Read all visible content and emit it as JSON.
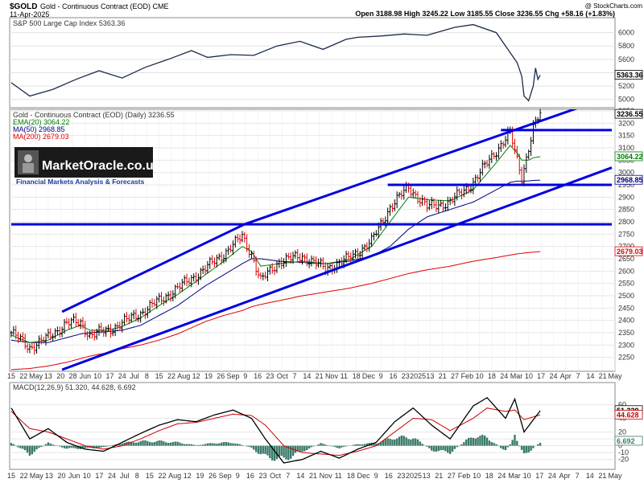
{
  "header": {
    "symbol": "$GOLD",
    "name": "Gold - Continuous Contract (EOD) CME",
    "date": "11-Apr-2025",
    "ohlc": "Open 3188.98  High 3245.22  Low 3185.55  Close 3236.55  Chg +58.16 (+1.83%)",
    "copyright": "@ StockCharts.com"
  },
  "colors": {
    "channel": "#0000e0",
    "price_up": "#000000",
    "price_down": "#e00000",
    "ema20": "#008000",
    "ma50": "#000080",
    "ma200": "#e00000",
    "spx": "#1a2a4a",
    "macd": "#000000",
    "signal": "#cc0000",
    "histogram": "#3a7a6a",
    "panel_bg": "#f6f6f6"
  },
  "brand": {
    "text": "MarketOracle.co.uk",
    "tagline": "Financial Markets Analysis & Forecasts"
  },
  "chart_data": [
    {
      "type": "line",
      "panel": "top",
      "title": "S&P 500 Large Cap Index 5363.36",
      "series_name": "S&P 500 Large Cap Index",
      "last_value_label": "5363.36",
      "ylim": [
        4900,
        6200
      ],
      "y_ticks": [
        "5000",
        "5200",
        "5400",
        "5600",
        "5800",
        "6000"
      ],
      "x_index": [
        0,
        8,
        18,
        28,
        38,
        48,
        58,
        68,
        78,
        85,
        95,
        105,
        115,
        125,
        135,
        145,
        150,
        160,
        170,
        180,
        192,
        200,
        210,
        215,
        219,
        221,
        222,
        224,
        226,
        227,
        228,
        229
      ],
      "values": [
        5250,
        5050,
        5150,
        5300,
        5430,
        5320,
        5480,
        5600,
        5730,
        5630,
        5670,
        5660,
        5800,
        5870,
        5750,
        5900,
        5930,
        5950,
        5980,
        5960,
        6080,
        6120,
        6000,
        5750,
        5550,
        5350,
        5050,
        4980,
        5200,
        5470,
        5300,
        5363
      ]
    },
    {
      "type": "candlestick",
      "panel": "main",
      "title": "Gold - Continuous Contract (EOD) (Daily) 3236.55",
      "ylim": [
        2200,
        3250
      ],
      "y_ticks": [
        "2250",
        "2300",
        "2350",
        "2400",
        "2450",
        "2500",
        "2550",
        "2600",
        "2650",
        "2700",
        "2750",
        "2800",
        "2850",
        "2900",
        "2950",
        "3000",
        "3050",
        "3100",
        "3150",
        "3200",
        "3250"
      ],
      "legend": [
        {
          "label": "EMA(20) 3064.22",
          "color": "#008000"
        },
        {
          "label": "MA(50) 2968.85",
          "color": "#000080"
        },
        {
          "label": "MA(200) 2679.03",
          "color": "#e00000"
        }
      ],
      "right_labels": [
        "3236.55",
        "3064.22",
        "2968.85",
        "2679.03"
      ],
      "price_anchors_x": [
        0,
        8,
        16,
        24,
        30,
        34,
        42,
        48,
        56,
        64,
        72,
        78,
        84,
        92,
        100,
        104,
        108,
        116,
        126,
        136,
        146,
        156,
        164,
        172,
        180,
        190,
        200,
        210,
        216,
        219,
        221,
        224,
        226,
        229
      ],
      "price_anchors_y": [
        2350,
        2290,
        2330,
        2390,
        2390,
        2340,
        2360,
        2390,
        2430,
        2480,
        2530,
        2570,
        2610,
        2670,
        2740,
        2670,
        2560,
        2640,
        2660,
        2610,
        2650,
        2720,
        2860,
        2940,
        2860,
        2880,
        2960,
        3090,
        3160,
        3050,
        2980,
        3100,
        3180,
        3236
      ],
      "ema20_anchors_y": [
        2340,
        2310,
        2320,
        2360,
        2380,
        2360,
        2360,
        2375,
        2410,
        2460,
        2505,
        2545,
        2585,
        2640,
        2700,
        2680,
        2620,
        2630,
        2640,
        2630,
        2645,
        2700,
        2800,
        2900,
        2890,
        2885,
        2930,
        3040,
        3110,
        3080,
        3050,
        3050,
        3060,
        3064
      ],
      "ma50_anchors_y": [
        2320,
        2310,
        2310,
        2330,
        2345,
        2350,
        2355,
        2360,
        2380,
        2420,
        2460,
        2500,
        2540,
        2585,
        2630,
        2650,
        2650,
        2640,
        2635,
        2630,
        2640,
        2660,
        2700,
        2770,
        2820,
        2850,
        2880,
        2930,
        2960,
        2965,
        2965,
        2966,
        2968,
        2969
      ],
      "ma200_anchors_y": [
        2200,
        2205,
        2215,
        2230,
        2245,
        2255,
        2270,
        2285,
        2300,
        2320,
        2345,
        2370,
        2395,
        2420,
        2440,
        2455,
        2465,
        2480,
        2500,
        2515,
        2530,
        2550,
        2570,
        2590,
        2605,
        2620,
        2640,
        2655,
        2665,
        2670,
        2672,
        2675,
        2677,
        2679
      ],
      "channel_lines": [
        {
          "x": [
            22,
            101
          ],
          "y": [
            2435,
            2790
          ]
        },
        {
          "x": [
            101,
            260
          ],
          "y": [
            2790,
            3310
          ]
        },
        {
          "x": [
            22,
            260
          ],
          "y": [
            2200,
            3020
          ]
        },
        {
          "x": [
            0,
            260
          ],
          "y": [
            2790,
            2790
          ]
        },
        {
          "x": [
            163,
            260
          ],
          "y": [
            2950,
            2950
          ]
        },
        {
          "x": [
            212,
            260
          ],
          "y": [
            3172,
            3172
          ]
        }
      ]
    },
    {
      "type": "line",
      "panel": "bottom",
      "title": "MACD(12,26,9) 51.320, 44.628, 6.692",
      "ylim": [
        -32,
        78
      ],
      "y_ticks": [
        "-20",
        "-10",
        "0",
        "10",
        "20",
        "40",
        "60"
      ],
      "right_labels": [
        "51.320",
        "44.628",
        "6.692"
      ],
      "x_index": [
        0,
        8,
        16,
        24,
        32,
        40,
        48,
        56,
        64,
        72,
        80,
        88,
        96,
        104,
        110,
        118,
        126,
        134,
        142,
        150,
        158,
        166,
        174,
        182,
        190,
        200,
        206,
        214,
        218,
        222,
        229
      ],
      "macd": [
        55,
        10,
        25,
        5,
        -5,
        -8,
        5,
        18,
        30,
        38,
        35,
        45,
        52,
        40,
        10,
        -25,
        -20,
        -8,
        -18,
        -5,
        5,
        35,
        55,
        30,
        10,
        58,
        70,
        40,
        68,
        20,
        51
      ],
      "signal": [
        50,
        25,
        20,
        10,
        0,
        -5,
        0,
        10,
        22,
        32,
        34,
        40,
        46,
        44,
        30,
        0,
        -10,
        -12,
        -14,
        -8,
        0,
        20,
        40,
        38,
        22,
        40,
        55,
        50,
        52,
        38,
        45
      ],
      "histogram": [
        5,
        -15,
        5,
        -5,
        -5,
        -3,
        5,
        8,
        8,
        6,
        1,
        5,
        6,
        -4,
        -20,
        -25,
        -10,
        4,
        -4,
        3,
        5,
        15,
        15,
        -8,
        -12,
        18,
        15,
        -10,
        16,
        -18,
        7
      ]
    }
  ],
  "x_axis": {
    "main_labels": [
      "15",
      "22",
      "May",
      "13",
      "20",
      "28",
      "Jun",
      "10",
      "17",
      "24",
      "Jul",
      "8",
      "15",
      "22",
      "Aug",
      "12",
      "19",
      "26",
      "Sep",
      "9",
      "16",
      "23",
      "Oct",
      "7",
      "14",
      "21",
      "Nov",
      "11",
      "18",
      "Dec",
      "9",
      "16",
      "23",
      "2025",
      "13",
      "21",
      "27",
      "Feb",
      "10",
      "18",
      "24",
      "Mar",
      "10",
      "17",
      "24",
      "Apr",
      "7",
      "14",
      "21",
      "May"
    ],
    "macd_labels": [
      "15",
      "22",
      "May",
      "13",
      "20",
      "Jun",
      "10",
      "17",
      "24",
      "Jul",
      "8",
      "15",
      "22",
      "Aug",
      "12",
      "19",
      "26",
      "Sep",
      "9",
      "16",
      "23",
      "Oct",
      "7",
      "14",
      "21",
      "Nov",
      "11",
      "18",
      "Dec",
      "9",
      "16",
      "23",
      "2025",
      "13",
      "21",
      "27",
      "Feb",
      "10",
      "18",
      "24",
      "Mar",
      "10",
      "17",
      "24",
      "Apr",
      "7",
      "14",
      "21",
      "May"
    ]
  }
}
